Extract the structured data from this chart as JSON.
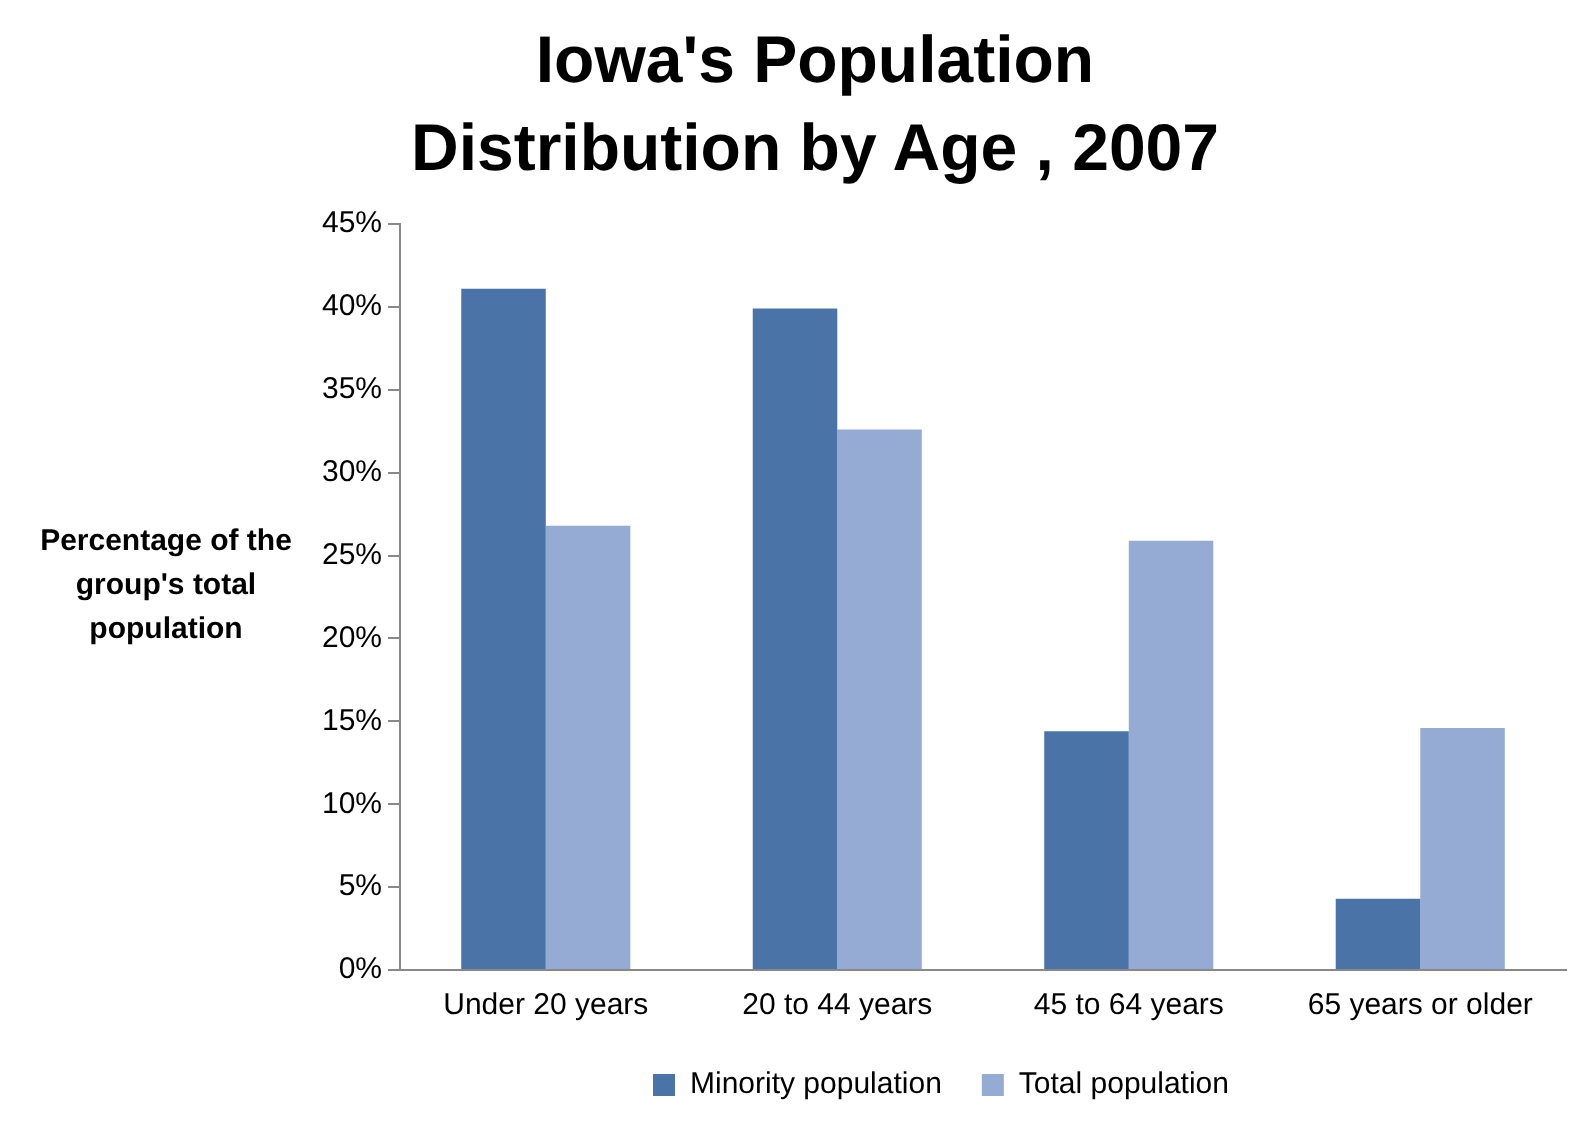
{
  "chart_data": {
    "type": "bar",
    "title": "Iowa's Population Distribution by Age , 2007",
    "ylabel": "Percentage of the group's total population",
    "categories": [
      "Under 20 years",
      "20 to 44 years",
      "45 to 64 years",
      "65 years or older"
    ],
    "series": [
      {
        "name": "Minority population",
        "color": "#4a74a8",
        "values": [
          41.1,
          39.9,
          14.4,
          4.3
        ]
      },
      {
        "name": "Total population",
        "color": "#95abd4",
        "values": [
          26.8,
          32.6,
          25.9,
          14.6
        ]
      }
    ],
    "ylim": [
      0,
      45
    ],
    "yticks": [
      {
        "value": 0,
        "label": "0%"
      },
      {
        "value": 5,
        "label": "5%"
      },
      {
        "value": 10,
        "label": "10%"
      },
      {
        "value": 15,
        "label": "15%"
      },
      {
        "value": 20,
        "label": "20%"
      },
      {
        "value": 25,
        "label": "25%"
      },
      {
        "value": 30,
        "label": "30%"
      },
      {
        "value": 35,
        "label": "35%"
      },
      {
        "value": 40,
        "label": "40%"
      },
      {
        "value": 45,
        "label": "45%"
      }
    ],
    "grid": false,
    "legend": "bottom"
  }
}
